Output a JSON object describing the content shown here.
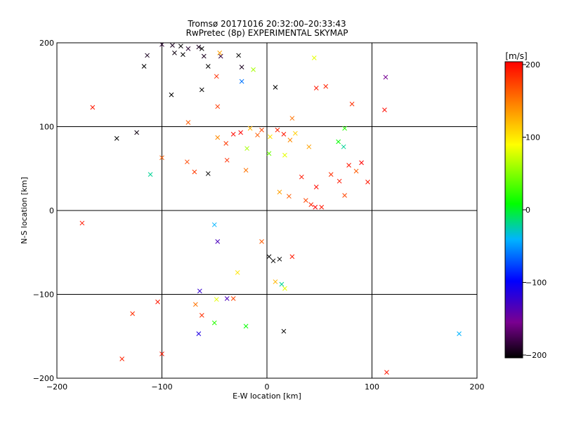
{
  "chart_data": {
    "type": "scatter",
    "title": "Tromsø 20171016 20:32:00–20:33:43",
    "subtitle": "RwPretec (8p) EXPERIMENTAL SKYMAP",
    "xlabel": "E-W location [km]",
    "ylabel": "N-S location [km]",
    "xlim": [
      -200,
      200
    ],
    "ylim": [
      -200,
      200
    ],
    "xticks": [
      "−200",
      "−100",
      "0",
      "100",
      "200"
    ],
    "yticks": [
      "−200",
      "−100",
      "0",
      "100",
      "200"
    ],
    "grid_x": [
      -100,
      0,
      100
    ],
    "grid_y": [
      -100,
      0,
      100
    ],
    "colorbar": {
      "label": "[m/s]",
      "min": -200,
      "max": 200,
      "ticks": [
        "200",
        "100",
        "0",
        "−100",
        "−200"
      ],
      "colormap": [
        "#000000",
        "#7a0090",
        "#0000ff",
        "#00b4ff",
        "#00ff00",
        "#ffff00",
        "#ff8000",
        "#ff0000"
      ]
    },
    "crosses": [
      {
        "x": -114,
        "y": 185,
        "v": -190
      },
      {
        "x": -117,
        "y": 172,
        "v": -200
      },
      {
        "x": -100,
        "y": 198,
        "v": -180
      },
      {
        "x": -90,
        "y": 197,
        "v": -190
      },
      {
        "x": -82,
        "y": 196,
        "v": -200
      },
      {
        "x": -75,
        "y": 193,
        "v": -185
      },
      {
        "x": -65,
        "y": 195,
        "v": -190
      },
      {
        "x": -62,
        "y": 193,
        "v": -200
      },
      {
        "x": -88,
        "y": 188,
        "v": -195
      },
      {
        "x": -80,
        "y": 186,
        "v": -200
      },
      {
        "x": -60,
        "y": 184,
        "v": -190
      },
      {
        "x": -44,
        "y": 184,
        "v": -180
      },
      {
        "x": -27,
        "y": 185,
        "v": -200
      },
      {
        "x": -24,
        "y": 171,
        "v": -190
      },
      {
        "x": -45,
        "y": 188,
        "v": 130
      },
      {
        "x": -13,
        "y": 168,
        "v": 60
      },
      {
        "x": -56,
        "y": 172,
        "v": -200
      },
      {
        "x": -48,
        "y": 160,
        "v": 180
      },
      {
        "x": -91,
        "y": 138,
        "v": -200
      },
      {
        "x": -62,
        "y": 144,
        "v": -200
      },
      {
        "x": -47,
        "y": 124,
        "v": 175
      },
      {
        "x": -75,
        "y": 105,
        "v": 160
      },
      {
        "x": -124,
        "y": 93,
        "v": -195
      },
      {
        "x": -143,
        "y": 86,
        "v": -200
      },
      {
        "x": -166,
        "y": 123,
        "v": 190
      },
      {
        "x": 8,
        "y": 147,
        "v": -200
      },
      {
        "x": 45,
        "y": 182,
        "v": 80
      },
      {
        "x": 47,
        "y": 146,
        "v": 190
      },
      {
        "x": 56,
        "y": 148,
        "v": 185
      },
      {
        "x": 81,
        "y": 127,
        "v": 180
      },
      {
        "x": 113,
        "y": 159,
        "v": -150
      },
      {
        "x": 112,
        "y": 120,
        "v": 195
      },
      {
        "x": 24,
        "y": 110,
        "v": 150
      },
      {
        "x": -24,
        "y": 154,
        "v": -60
      },
      {
        "x": -25,
        "y": 93,
        "v": 200
      },
      {
        "x": -32,
        "y": 91,
        "v": 195
      },
      {
        "x": -16,
        "y": 98,
        "v": 120
      },
      {
        "x": -9,
        "y": 90,
        "v": 160
      },
      {
        "x": -5,
        "y": 96,
        "v": 170
      },
      {
        "x": 3,
        "y": 88,
        "v": 100
      },
      {
        "x": 10,
        "y": 96,
        "v": 185
      },
      {
        "x": 16,
        "y": 91,
        "v": 190
      },
      {
        "x": 22,
        "y": 84,
        "v": 140
      },
      {
        "x": 27,
        "y": 92,
        "v": 110
      },
      {
        "x": -39,
        "y": 80,
        "v": 175
      },
      {
        "x": -47,
        "y": 87,
        "v": 140
      },
      {
        "x": -19,
        "y": 74,
        "v": 60
      },
      {
        "x": 2,
        "y": 68,
        "v": 40
      },
      {
        "x": 17,
        "y": 66,
        "v": 80
      },
      {
        "x": 40,
        "y": 76,
        "v": 130
      },
      {
        "x": 68,
        "y": 82,
        "v": 10
      },
      {
        "x": 73,
        "y": 76,
        "v": -20
      },
      {
        "x": 74,
        "y": 98,
        "v": 20
      },
      {
        "x": 78,
        "y": 54,
        "v": 190
      },
      {
        "x": 85,
        "y": 47,
        "v": 160
      },
      {
        "x": 90,
        "y": 57,
        "v": 200
      },
      {
        "x": 96,
        "y": 34,
        "v": 190
      },
      {
        "x": 61,
        "y": 43,
        "v": 180
      },
      {
        "x": 69,
        "y": 35,
        "v": 190
      },
      {
        "x": 74,
        "y": 18,
        "v": 170
      },
      {
        "x": 47,
        "y": 28,
        "v": 195
      },
      {
        "x": 42,
        "y": 7,
        "v": 185
      },
      {
        "x": 46,
        "y": 4,
        "v": 200
      },
      {
        "x": 52,
        "y": 4,
        "v": 190
      },
      {
        "x": 37,
        "y": 12,
        "v": 170
      },
      {
        "x": 21,
        "y": 17,
        "v": 160
      },
      {
        "x": 12,
        "y": 22,
        "v": 130
      },
      {
        "x": 33,
        "y": 40,
        "v": 190
      },
      {
        "x": -20,
        "y": 48,
        "v": 150
      },
      {
        "x": -38,
        "y": 60,
        "v": 180
      },
      {
        "x": -56,
        "y": 44,
        "v": -200
      },
      {
        "x": -76,
        "y": 58,
        "v": 170
      },
      {
        "x": -69,
        "y": 46,
        "v": 175
      },
      {
        "x": -100,
        "y": 63,
        "v": 160
      },
      {
        "x": -111,
        "y": 43,
        "v": -20
      },
      {
        "x": -176,
        "y": -15,
        "v": 190
      },
      {
        "x": -50,
        "y": -17,
        "v": -40
      },
      {
        "x": -47,
        "y": -37,
        "v": -130
      },
      {
        "x": -28,
        "y": -74,
        "v": 100
      },
      {
        "x": -5,
        "y": -37,
        "v": 160
      },
      {
        "x": 2,
        "y": -55,
        "v": -200
      },
      {
        "x": 6,
        "y": -60,
        "v": -200
      },
      {
        "x": 12,
        "y": -58,
        "v": -200
      },
      {
        "x": 24,
        "y": -55,
        "v": 190
      },
      {
        "x": 14,
        "y": -88,
        "v": -20
      },
      {
        "x": 17,
        "y": -93,
        "v": 80
      },
      {
        "x": 8,
        "y": -85,
        "v": 120
      },
      {
        "x": -64,
        "y": -96,
        "v": -120
      },
      {
        "x": -68,
        "y": -112,
        "v": 150
      },
      {
        "x": -62,
        "y": -125,
        "v": 180
      },
      {
        "x": -38,
        "y": -105,
        "v": -130
      },
      {
        "x": -48,
        "y": -106,
        "v": 80
      },
      {
        "x": -50,
        "y": -134,
        "v": 20
      },
      {
        "x": -32,
        "y": -105,
        "v": 170
      },
      {
        "x": -20,
        "y": -138,
        "v": 10
      },
      {
        "x": -65,
        "y": -147,
        "v": -110
      },
      {
        "x": -104,
        "y": -109,
        "v": 190
      },
      {
        "x": -128,
        "y": -123,
        "v": 180
      },
      {
        "x": -138,
        "y": -177,
        "v": 185
      },
      {
        "x": -100,
        "y": -171,
        "v": 190
      },
      {
        "x": 16,
        "y": -144,
        "v": -200
      },
      {
        "x": 114,
        "y": -193,
        "v": 190
      },
      {
        "x": 183,
        "y": -147,
        "v": -40
      }
    ]
  }
}
